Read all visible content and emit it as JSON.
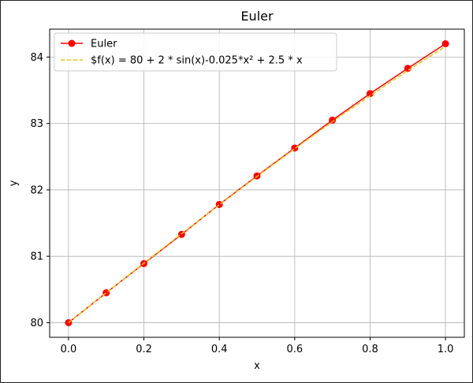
{
  "chart_data": {
    "type": "line",
    "title": "Euler",
    "xlabel": "x",
    "ylabel": "y",
    "xlim": [
      -0.05,
      1.05
    ],
    "ylim": [
      79.78,
      84.42
    ],
    "xticks": [
      0.0,
      0.2,
      0.4,
      0.6,
      0.8,
      1.0
    ],
    "xtick_labels": [
      "0.0",
      "0.2",
      "0.4",
      "0.6",
      "0.8",
      "1.0"
    ],
    "yticks": [
      80,
      81,
      82,
      83,
      84
    ],
    "ytick_labels": [
      "80",
      "81",
      "82",
      "83",
      "84"
    ],
    "grid": true,
    "legend_position": "top-left",
    "series": [
      {
        "name": "Euler",
        "color": "#ff0000",
        "style": "solid",
        "marker": "circle",
        "x": [
          0.0,
          0.1,
          0.2,
          0.3,
          0.4,
          0.5,
          0.6,
          0.7,
          0.8,
          0.9,
          1.0
        ],
        "y": [
          80.0,
          80.45,
          80.89,
          81.33,
          81.78,
          82.21,
          82.63,
          83.05,
          83.45,
          83.83,
          84.2
        ]
      },
      {
        "name": "$f(x) = 80 + 2 * sin(x)-0.025*x² + 2.5 * x",
        "color": "#e6c619",
        "style": "dashed",
        "marker": "none",
        "x": [
          0.0,
          0.1,
          0.2,
          0.3,
          0.4,
          0.5,
          0.6,
          0.7,
          0.8,
          0.9,
          1.0
        ],
        "y": [
          80.0,
          80.4494,
          80.8963,
          81.3388,
          81.7748,
          82.2026,
          82.6203,
          83.0262,
          83.4187,
          83.7964,
          84.1579
        ]
      }
    ]
  }
}
